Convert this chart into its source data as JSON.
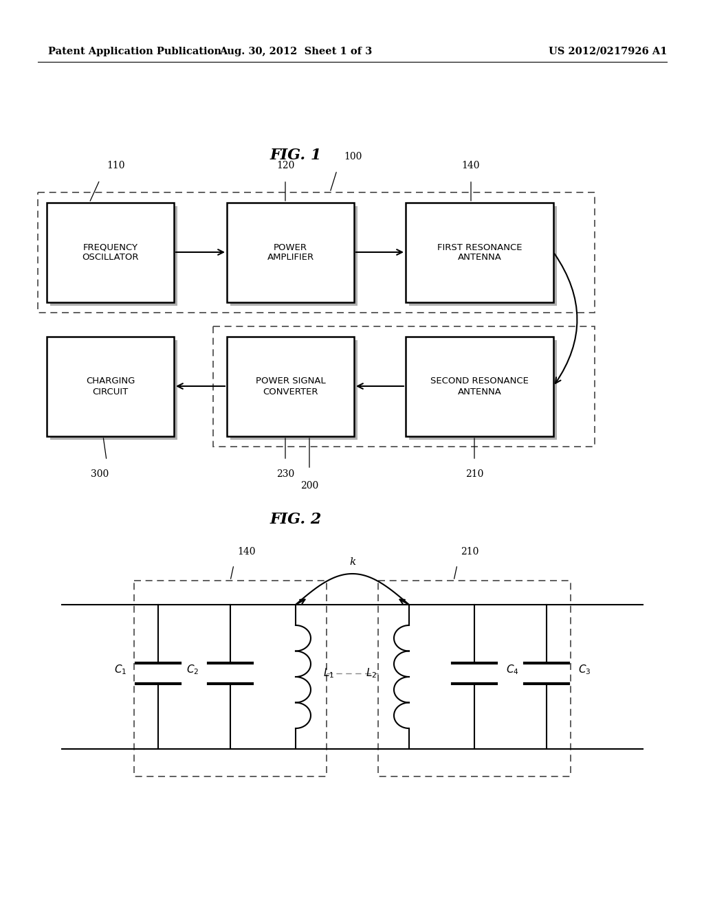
{
  "bg_color": "#ffffff",
  "header_left": "Patent Application Publication",
  "header_mid": "Aug. 30, 2012  Sheet 1 of 3",
  "header_right": "US 2012/0217926 A1",
  "fig1_title": "FIG. 1",
  "fig2_title": "FIG. 2"
}
